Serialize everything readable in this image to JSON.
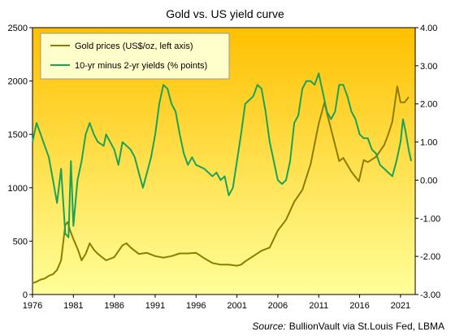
{
  "chart_data": {
    "type": "line",
    "title": "Gold vs. US yield curve",
    "source_label": "Source:",
    "source_text": "BullionVault via St.Louis Fed, LBMA",
    "xlabel": "",
    "ylabel_left": "",
    "ylabel_right": "",
    "x_ticks": [
      "1976",
      "1981",
      "1986",
      "1991",
      "1996",
      "2001",
      "2006",
      "2011",
      "2016",
      "2021"
    ],
    "xlim": [
      1976,
      2022.8
    ],
    "y_left_ticks": [
      "0",
      "500",
      "1000",
      "1500",
      "2000",
      "2500"
    ],
    "ylim_left": [
      0,
      2500
    ],
    "y_right_ticks": [
      "-3.00",
      "-2.00",
      "-1.00",
      "0.00",
      "1.00",
      "2.00",
      "3.00",
      "4.00"
    ],
    "ylim_right": [
      -3,
      4
    ],
    "grid": false,
    "legend_position": "top-left",
    "background_gradient": [
      "#ffc000",
      "#ffff99"
    ],
    "series": [
      {
        "name": "Gold prices (US$/oz, left axis)",
        "axis": "left",
        "color": "#8b7d00",
        "x": [
          1976.0,
          1976.5,
          1977.0,
          1977.5,
          1978.0,
          1978.5,
          1979.0,
          1979.5,
          1980.0,
          1980.3,
          1980.6,
          1981.0,
          1981.5,
          1982.0,
          1982.5,
          1983.0,
          1983.5,
          1984.0,
          1985.0,
          1986.0,
          1987.0,
          1987.5,
          1988.0,
          1989.0,
          1990.0,
          1991.0,
          1992.0,
          1993.0,
          1994.0,
          1995.0,
          1996.0,
          1997.0,
          1998.0,
          1999.0,
          2000.0,
          2001.0,
          2001.5,
          2002.0,
          2003.0,
          2004.0,
          2005.0,
          2006.0,
          2007.0,
          2008.0,
          2009.0,
          2010.0,
          2011.0,
          2011.7,
          2012.0,
          2013.0,
          2013.5,
          2014.0,
          2015.0,
          2015.9,
          2016.5,
          2017.0,
          2018.0,
          2019.0,
          2019.5,
          2020.0,
          2020.6,
          2021.0,
          2021.5,
          2022.0
        ],
        "values": [
          105,
          120,
          140,
          150,
          175,
          190,
          230,
          320,
          650,
          680,
          600,
          520,
          430,
          320,
          380,
          480,
          420,
          380,
          320,
          350,
          460,
          480,
          440,
          380,
          390,
          360,
          345,
          360,
          385,
          385,
          390,
          340,
          295,
          280,
          280,
          270,
          280,
          310,
          360,
          410,
          440,
          600,
          700,
          870,
          980,
          1220,
          1600,
          1800,
          1700,
          1400,
          1250,
          1280,
          1150,
          1060,
          1260,
          1240,
          1290,
          1400,
          1500,
          1620,
          1950,
          1800,
          1800,
          1850
        ]
      },
      {
        "name": "10-yr minus 2-yr yields (% points)",
        "axis": "right",
        "color": "#1aa357",
        "x": [
          1976.0,
          1976.5,
          1977.0,
          1977.5,
          1978.0,
          1978.5,
          1979.0,
          1979.5,
          1980.0,
          1980.4,
          1980.7,
          1981.0,
          1981.5,
          1982.0,
          1982.5,
          1983.0,
          1983.5,
          1984.0,
          1984.7,
          1985.0,
          1986.0,
          1986.5,
          1987.0,
          1988.0,
          1988.5,
          1989.0,
          1989.5,
          1990.0,
          1990.5,
          1991.0,
          1991.5,
          1992.0,
          1992.5,
          1993.0,
          1993.5,
          1994.0,
          1994.5,
          1995.0,
          1995.5,
          1996.0,
          1997.0,
          1998.0,
          1998.5,
          1999.0,
          1999.5,
          2000.0,
          2000.5,
          2001.0,
          2001.5,
          2002.0,
          2002.5,
          2003.0,
          2003.5,
          2004.0,
          2004.5,
          2005.0,
          2005.5,
          2006.0,
          2006.5,
          2007.0,
          2007.5,
          2008.0,
          2008.5,
          2009.0,
          2009.5,
          2010.0,
          2010.5,
          2011.0,
          2011.5,
          2012.0,
          2012.5,
          2013.0,
          2013.5,
          2014.0,
          2014.5,
          2015.0,
          2015.5,
          2016.0,
          2016.5,
          2017.0,
          2017.5,
          2018.0,
          2018.5,
          2019.0,
          2019.5,
          2020.0,
          2020.5,
          2021.0,
          2021.3,
          2021.6,
          2022.0,
          2022.3
        ],
        "values": [
          1.0,
          1.5,
          1.2,
          0.9,
          0.6,
          0.0,
          -0.6,
          0.3,
          -1.4,
          -1.5,
          0.5,
          -1.2,
          0.0,
          0.5,
          1.2,
          1.5,
          1.2,
          1.0,
          0.9,
          1.2,
          0.8,
          0.4,
          1.0,
          0.8,
          0.6,
          0.2,
          -0.2,
          0.2,
          0.6,
          1.2,
          2.0,
          2.5,
          2.4,
          2.0,
          1.8,
          1.2,
          0.7,
          0.4,
          0.6,
          0.4,
          0.3,
          0.1,
          0.2,
          0.0,
          0.1,
          -0.4,
          -0.2,
          0.5,
          1.2,
          2.0,
          2.1,
          2.2,
          2.5,
          2.4,
          1.8,
          1.0,
          0.5,
          0.0,
          -0.1,
          0.0,
          0.5,
          1.5,
          1.7,
          2.4,
          2.6,
          2.6,
          2.5,
          2.8,
          2.3,
          1.8,
          1.6,
          1.8,
          2.5,
          2.5,
          2.2,
          1.8,
          1.6,
          1.2,
          1.1,
          1.1,
          0.8,
          0.7,
          0.4,
          0.3,
          0.2,
          0.1,
          0.5,
          1.0,
          1.6,
          1.3,
          0.8,
          0.5
        ]
      }
    ]
  }
}
